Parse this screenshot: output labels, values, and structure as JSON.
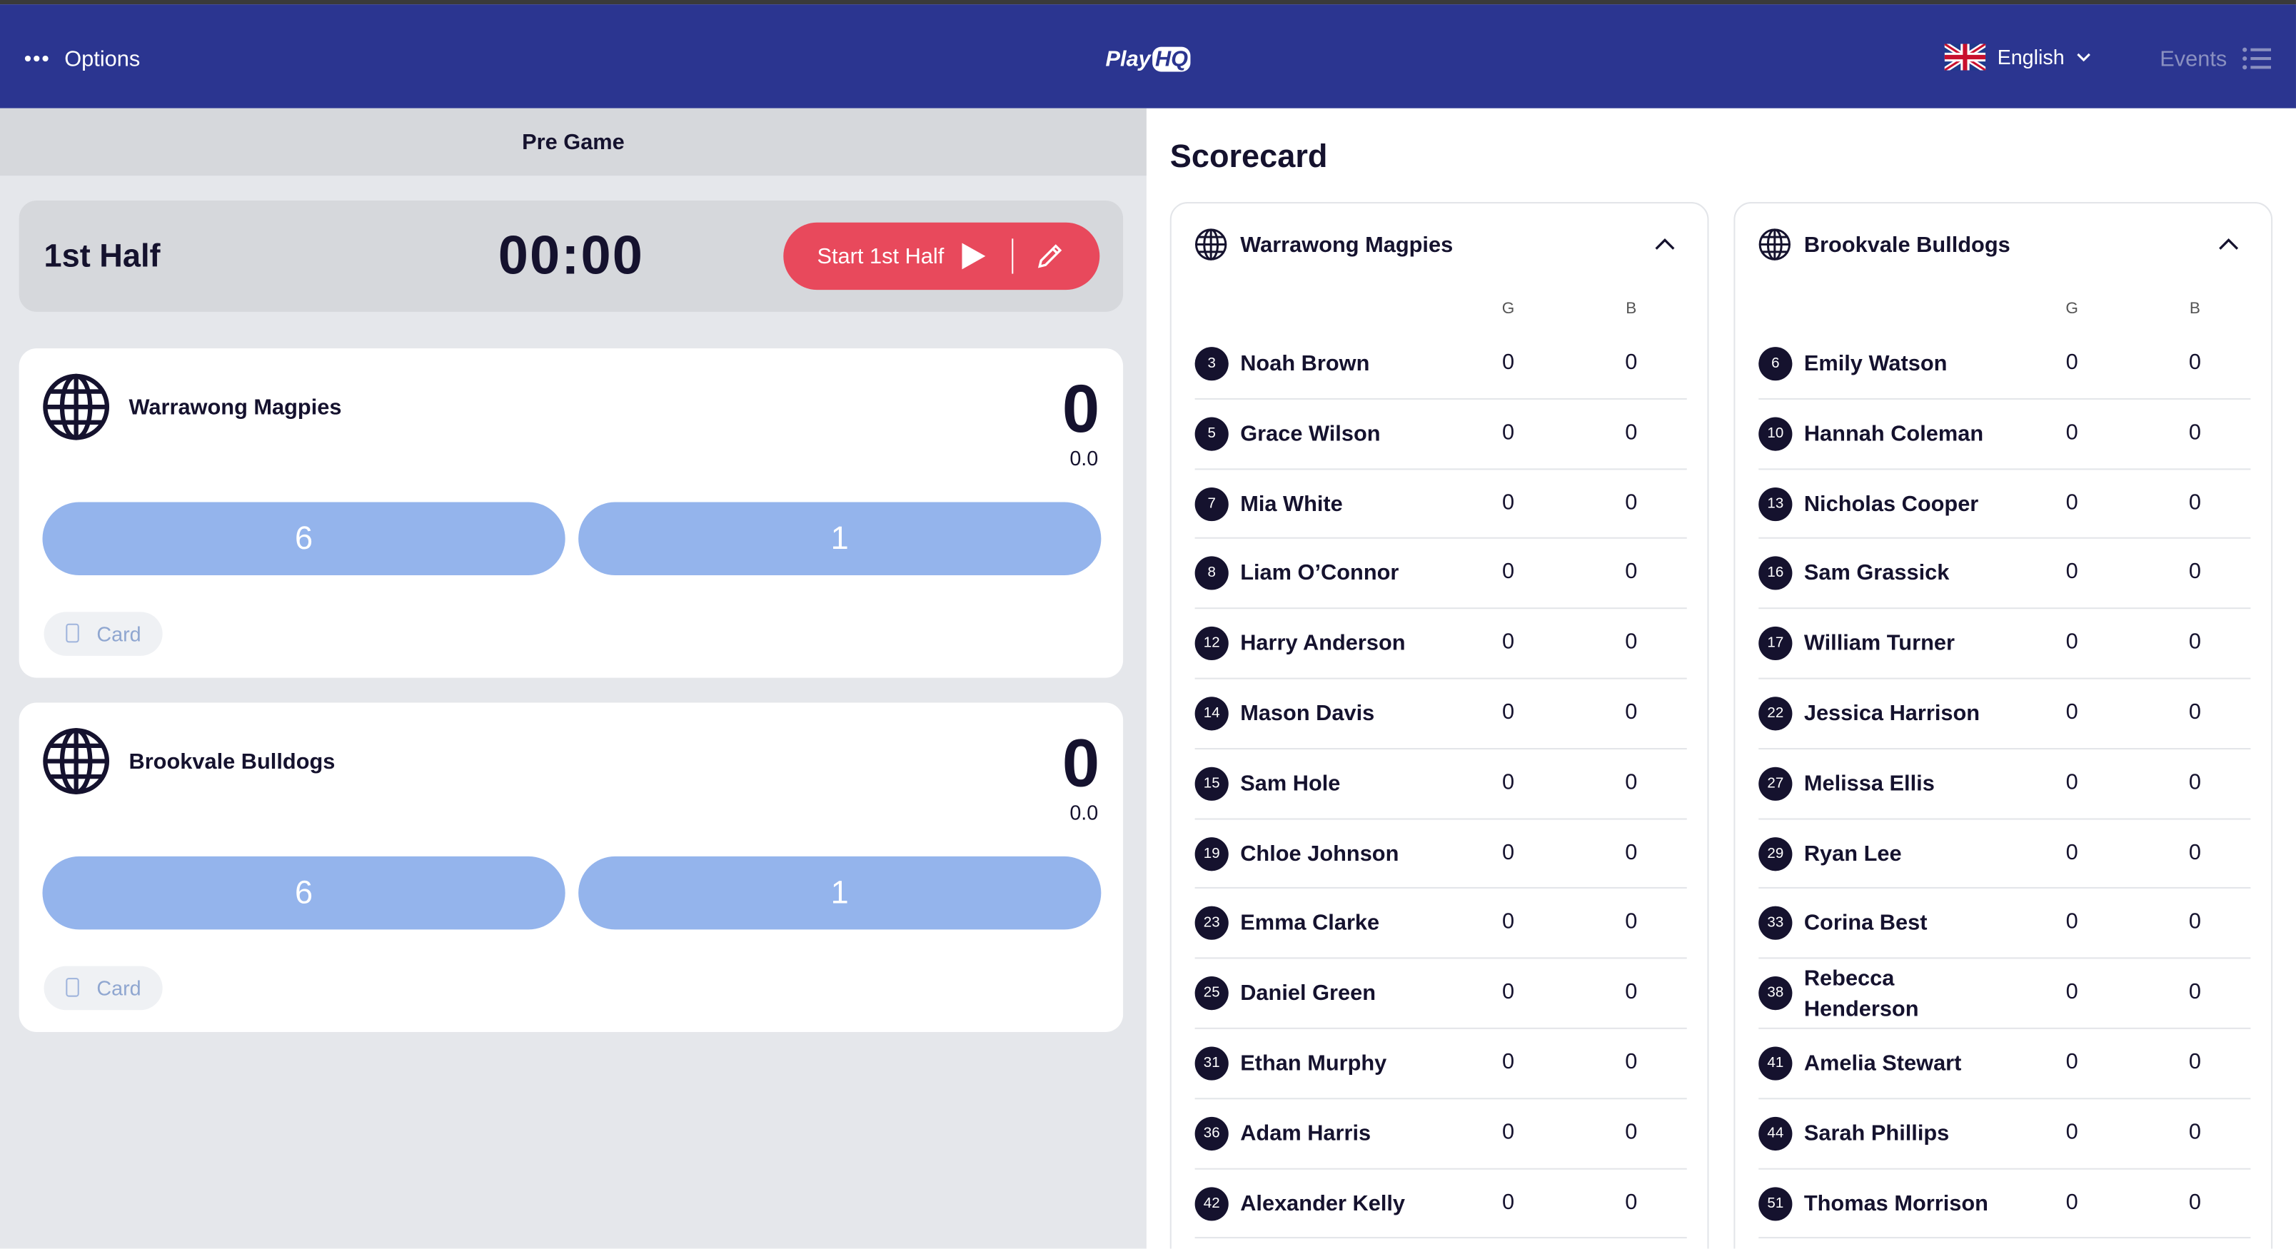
{
  "header": {
    "options": "Options",
    "logo": {
      "play": "Play",
      "hq": "HQ"
    },
    "language": "English",
    "events": "Events"
  },
  "game": {
    "status": "Pre Game",
    "period": "1st Half",
    "clock": "00:00",
    "start_button": "Start 1st Half",
    "teams": [
      {
        "name": "Warrawong Magpies",
        "score": "0",
        "sub_score": "0.0",
        "buttons": [
          "6",
          "1"
        ],
        "card": "Card"
      },
      {
        "name": "Brookvale Bulldogs",
        "score": "0",
        "sub_score": "0.0",
        "buttons": [
          "6",
          "1"
        ],
        "card": "Card"
      }
    ]
  },
  "scorecard": {
    "title": "Scorecard",
    "teams": [
      {
        "name": "Warrawong Magpies",
        "columns": [
          "G",
          "B"
        ],
        "players": [
          {
            "number": "3",
            "name": "Noah Brown",
            "g": "0",
            "b": "0"
          },
          {
            "number": "5",
            "name": "Grace Wilson",
            "g": "0",
            "b": "0"
          },
          {
            "number": "7",
            "name": "Mia White",
            "g": "0",
            "b": "0"
          },
          {
            "number": "8",
            "name": "Liam O’Connor",
            "g": "0",
            "b": "0"
          },
          {
            "number": "12",
            "name": "Harry Anderson",
            "g": "0",
            "b": "0"
          },
          {
            "number": "14",
            "name": "Mason Davis",
            "g": "0",
            "b": "0"
          },
          {
            "number": "15",
            "name": "Sam Hole",
            "g": "0",
            "b": "0"
          },
          {
            "number": "19",
            "name": "Chloe Johnson",
            "g": "0",
            "b": "0"
          },
          {
            "number": "23",
            "name": "Emma Clarke",
            "g": "0",
            "b": "0"
          },
          {
            "number": "25",
            "name": "Daniel Green",
            "g": "0",
            "b": "0"
          },
          {
            "number": "31",
            "name": "Ethan Murphy",
            "g": "0",
            "b": "0"
          },
          {
            "number": "36",
            "name": "Adam Harris",
            "g": "0",
            "b": "0"
          },
          {
            "number": "42",
            "name": "Alexander Kelly",
            "g": "0",
            "b": "0"
          }
        ]
      },
      {
        "name": "Brookvale Bulldogs",
        "columns": [
          "G",
          "B"
        ],
        "players": [
          {
            "number": "6",
            "name": "Emily Watson",
            "g": "0",
            "b": "0"
          },
          {
            "number": "10",
            "name": "Hannah Coleman",
            "g": "0",
            "b": "0"
          },
          {
            "number": "13",
            "name": "Nicholas Cooper",
            "g": "0",
            "b": "0"
          },
          {
            "number": "16",
            "name": "Sam Grassick",
            "g": "0",
            "b": "0"
          },
          {
            "number": "17",
            "name": "William Turner",
            "g": "0",
            "b": "0"
          },
          {
            "number": "22",
            "name": "Jessica Harrison",
            "g": "0",
            "b": "0"
          },
          {
            "number": "27",
            "name": "Melissa Ellis",
            "g": "0",
            "b": "0"
          },
          {
            "number": "29",
            "name": "Ryan Lee",
            "g": "0",
            "b": "0"
          },
          {
            "number": "33",
            "name": "Corina Best",
            "g": "0",
            "b": "0"
          },
          {
            "number": "38",
            "name": "Rebecca Henderson",
            "g": "0",
            "b": "0"
          },
          {
            "number": "41",
            "name": "Amelia Stewart",
            "g": "0",
            "b": "0"
          },
          {
            "number": "44",
            "name": "Sarah Phillips",
            "g": "0",
            "b": "0"
          },
          {
            "number": "51",
            "name": "Thomas Morrison",
            "g": "0",
            "b": "0"
          }
        ]
      }
    ]
  }
}
